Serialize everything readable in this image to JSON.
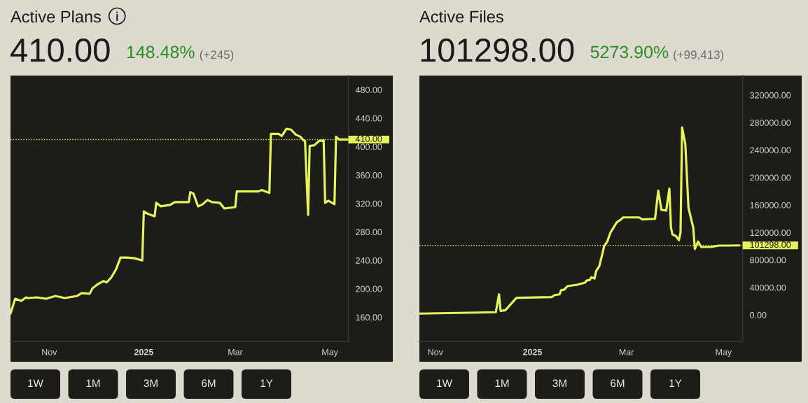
{
  "chart_data": [
    {
      "type": "line",
      "title": "Active Plans",
      "subtitle": "410.00",
      "annotations": [
        "148.48%",
        "(+245)",
        "1W",
        "1M",
        "3M",
        "6M",
        "1Y"
      ],
      "x": [
        "2024-10-07",
        "2024-10-10",
        "2024-10-14",
        "2024-10-17",
        "2024-10-18",
        "2024-10-24",
        "2024-10-30",
        "2024-11-05",
        "2024-11-11",
        "2024-11-19",
        "2024-11-22",
        "2024-11-27",
        "2024-11-29",
        "2024-12-02",
        "2024-12-06",
        "2024-12-08",
        "2024-12-11",
        "2024-12-14",
        "2024-12-17",
        "2024-12-21",
        "2024-12-26",
        "2024-12-31",
        "2025-01-01",
        "2025-01-03",
        "2025-01-08",
        "2025-01-09",
        "2025-01-12",
        "2025-01-18",
        "2025-01-21",
        "2025-01-30",
        "2025-01-31",
        "2025-02-02",
        "2025-02-05",
        "2025-02-08",
        "2025-02-11",
        "2025-02-14",
        "2025-02-19",
        "2025-02-22",
        "2025-03-01",
        "2025-03-02",
        "2025-03-09",
        "2025-03-16",
        "2025-03-18",
        "2025-03-23",
        "2025-03-24",
        "2025-03-29",
        "2025-03-31",
        "2025-04-03",
        "2025-04-06",
        "2025-04-09",
        "2025-04-12",
        "2025-04-14",
        "2025-04-15",
        "2025-04-17",
        "2025-04-18",
        "2025-04-21",
        "2025-04-24",
        "2025-04-27",
        "2025-04-28",
        "2025-04-30",
        "2025-05-04",
        "2025-05-05",
        "2025-05-07",
        "2025-05-13"
      ],
      "series": [
        {
          "color": "#e6f35a",
          "values": [
            165,
            186,
            183,
            188,
            187,
            188,
            186,
            190,
            187,
            190,
            194,
            193,
            201,
            206,
            211,
            209,
            216,
            227,
            244,
            244,
            243,
            240,
            309,
            306,
            302,
            321,
            316,
            318,
            322,
            322,
            336,
            334,
            316,
            319,
            325,
            322,
            321,
            313,
            315,
            337,
            337,
            337,
            339,
            335,
            418,
            418,
            415,
            425,
            424,
            417,
            414,
            409,
            408,
            304,
            401,
            402,
            408,
            409,
            321,
            324,
            319,
            414,
            410,
            410
          ]
        }
      ],
      "xlim": [
        "2024-10-07",
        "2025-05-13"
      ],
      "xticks": [
        {
          "value": "2024-11-01",
          "label": "Nov"
        },
        {
          "value": "2025-01-01",
          "label": "2025"
        },
        {
          "value": "2025-03-01",
          "label": "Mar"
        },
        {
          "value": "2025-05-01",
          "label": "May"
        }
      ],
      "ylim": [
        126,
        500
      ],
      "yticks": [
        {
          "value": 160,
          "label": "160.00"
        },
        {
          "value": 200,
          "label": "200.00"
        },
        {
          "value": 240,
          "label": "240.00"
        },
        {
          "value": 280,
          "label": "280.00"
        },
        {
          "value": 320,
          "label": "320.00"
        },
        {
          "value": 360,
          "label": "360.00"
        },
        {
          "value": 400,
          "label": "400.00"
        },
        {
          "value": 440,
          "label": "440.00"
        },
        {
          "value": 480,
          "label": "480.00"
        }
      ],
      "ref_lines": [
        {
          "axis": "y",
          "value": 410,
          "label": "410.00",
          "color": "#e6f35a",
          "line_style": "dotted"
        }
      ],
      "marker": "none",
      "line_style": "solid"
    },
    {
      "type": "line",
      "title": "Active Files",
      "subtitle": "101298.00",
      "annotations": [
        "5273.90%",
        "(+99,413)",
        "1W",
        "1M",
        "3M",
        "6M",
        "1Y"
      ],
      "x": [
        "2024-10-22",
        "2024-11-15",
        "2024-12-09",
        "2024-12-11",
        "2024-12-12",
        "2024-12-15",
        "2024-12-22",
        "2025-01-13",
        "2025-01-15",
        "2025-01-18",
        "2025-01-19",
        "2025-01-21",
        "2025-01-23",
        "2025-01-29",
        "2025-02-03",
        "2025-02-04",
        "2025-02-06",
        "2025-02-07",
        "2025-02-09",
        "2025-02-10",
        "2025-02-12",
        "2025-02-14",
        "2025-02-15",
        "2025-02-17",
        "2025-02-19",
        "2025-02-23",
        "2025-02-25",
        "2025-02-27",
        "2025-03-09",
        "2025-03-11",
        "2025-03-19",
        "2025-03-21",
        "2025-03-23",
        "2025-03-26",
        "2025-03-28",
        "2025-03-29",
        "2025-03-30",
        "2025-04-01",
        "2025-04-03",
        "2025-04-04",
        "2025-04-05",
        "2025-04-07",
        "2025-04-09",
        "2025-04-12",
        "2025-04-13",
        "2025-04-15",
        "2025-04-17",
        "2025-04-23",
        "2025-04-28",
        "2025-05-04",
        "2025-05-11"
      ],
      "series": [
        {
          "color": "#e6f35a",
          "values": [
            2000,
            3000,
            4000,
            30000,
            6000,
            7000,
            25000,
            26000,
            29000,
            30000,
            36000,
            37000,
            42000,
            44000,
            47000,
            50000,
            51000,
            55000,
            53000,
            64000,
            71000,
            90000,
            100000,
            107000,
            120000,
            135000,
            138000,
            142000,
            142000,
            139000,
            140000,
            181000,
            153000,
            152000,
            184000,
            127000,
            117000,
            115000,
            109000,
            120000,
            273000,
            249000,
            156000,
            127000,
            96000,
            107000,
            99000,
            99000,
            101000,
            101000,
            101298
          ]
        }
      ],
      "xlim": [
        "2024-10-22",
        "2025-05-13"
      ],
      "xticks": [
        {
          "value": "2024-11-01",
          "label": "Nov"
        },
        {
          "value": "2025-01-01",
          "label": "2025"
        },
        {
          "value": "2025-03-01",
          "label": "Mar"
        },
        {
          "value": "2025-05-01",
          "label": "May"
        }
      ],
      "ylim": [
        -38500,
        348500
      ],
      "yticks": [
        {
          "value": 0,
          "label": "0.00"
        },
        {
          "value": 40000,
          "label": "40000.00"
        },
        {
          "value": 80000,
          "label": "80000.00"
        },
        {
          "value": 120000,
          "label": "120000.00"
        },
        {
          "value": 160000,
          "label": "160000.00"
        },
        {
          "value": 200000,
          "label": "200000.00"
        },
        {
          "value": 240000,
          "label": "240000.00"
        },
        {
          "value": 280000,
          "label": "280000.00"
        },
        {
          "value": 320000,
          "label": "320000.00"
        }
      ],
      "ref_lines": [
        {
          "axis": "y",
          "value": 101298,
          "label": "101298.00",
          "color": "#e6f35a",
          "line_style": "dotted"
        }
      ],
      "marker": "none",
      "line_style": "solid"
    }
  ]
}
